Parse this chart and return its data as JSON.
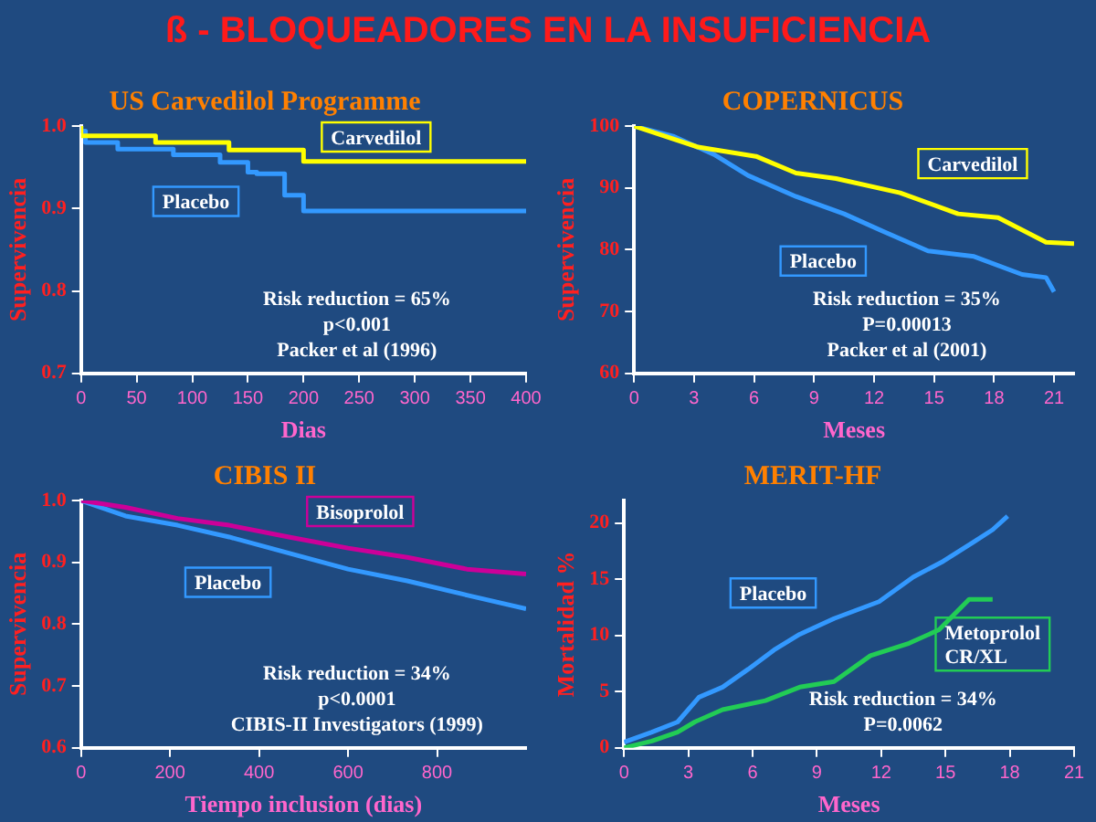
{
  "chart_data": [
    {
      "type": "other",
      "title": "ß - BLOQUEADORES EN LA INSUFICIENCIA"
    },
    {
      "type": "step",
      "title": "US Carvedilol Programme",
      "ylabel": "Supervivencia",
      "xlabel": "Dias",
      "xlim": [
        0,
        400
      ],
      "xticks": [
        0,
        50,
        100,
        150,
        200,
        250,
        300,
        350,
        400
      ],
      "ylim": [
        0.7,
        1.0
      ],
      "yticks": [
        0.7,
        0.8,
        0.9,
        {
          "value": 1.0,
          "label": "1.0"
        }
      ],
      "grid": false,
      "series": [
        {
          "name": "Carvedilol",
          "color": "#ffff00",
          "x": [
            0,
            67,
            133,
            200,
            217,
            400
          ],
          "values": [
            1.0,
            0.988,
            0.98,
            0.971,
            0.957,
            0.957
          ]
        },
        {
          "name": "Placebo",
          "color": "#3399ff",
          "x": [
            0,
            4,
            33,
            83,
            125,
            150,
            158,
            183,
            200,
            335,
            400
          ],
          "values": [
            1.0,
            0.994,
            0.98,
            0.972,
            0.965,
            0.956,
            0.944,
            0.942,
            0.916,
            0.897,
            0.897
          ]
        }
      ],
      "annotations": [
        "Risk reduction = 65%",
        "p<0.001",
        "Packer et al (1996)"
      ]
    },
    {
      "type": "line",
      "title": "COPERNICUS",
      "ylabel": "Supervivencia",
      "xlabel": "Meses",
      "xlim": [
        0,
        22
      ],
      "xticks": [
        0,
        3,
        6,
        9,
        12,
        15,
        18,
        21
      ],
      "ylim": [
        60,
        100
      ],
      "yticks": [
        60,
        70,
        80,
        90,
        100
      ],
      "grid": false,
      "series": [
        {
          "name": "Carvedilol",
          "color": "#ffff00",
          "x": [
            0,
            3.2,
            6.1,
            8.1,
            10.1,
            13.3,
            16.2,
            18.2,
            20.6,
            22
          ],
          "values": [
            100,
            96.6,
            95.1,
            92.4,
            91.5,
            89.2,
            85.8,
            85.2,
            81.2,
            81.0
          ]
        },
        {
          "name": "Placebo",
          "color": "#3399ff",
          "x": [
            0,
            2,
            4,
            5.7,
            8.1,
            10.5,
            12.5,
            14.7,
            17,
            19.4,
            20.6,
            21
          ],
          "values": [
            100,
            98.3,
            95.4,
            92.0,
            88.6,
            85.8,
            82.9,
            79.8,
            78.9,
            76.0,
            75.5,
            73.2
          ]
        }
      ],
      "annotations": [
        "Risk reduction = 35%",
        "P=0.00013",
        "Packer et al (2001)"
      ]
    },
    {
      "type": "line",
      "title": "CIBIS II",
      "ylabel": "Supervivencia",
      "xlabel": "Tiempo inclusion (dias)",
      "xlim": [
        0,
        1000
      ],
      "xticks": [
        0,
        200,
        400,
        600,
        800
      ],
      "ylim": [
        0.6,
        1.0
      ],
      "yticks": [
        0.6,
        0.7,
        0.8,
        0.9,
        {
          "value": 1.0,
          "label": "1.0"
        }
      ],
      "grid": false,
      "series": [
        {
          "name": "Bisoprolol",
          "color": "#cc0099",
          "x": [
            0,
            100,
            217,
            333,
            467,
            600,
            733,
            867,
            1000
          ],
          "values": [
            1.0,
            0.989,
            0.971,
            0.96,
            0.941,
            0.923,
            0.908,
            0.889,
            0.881
          ]
        },
        {
          "name": "Placebo",
          "color": "#3399ff",
          "x": [
            0,
            100,
            217,
            333,
            467,
            600,
            733,
            867,
            1000
          ],
          "values": [
            1.0,
            0.975,
            0.96,
            0.941,
            0.915,
            0.889,
            0.87,
            0.847,
            0.825
          ]
        }
      ],
      "annotations": [
        "Risk reduction = 34%",
        "p<0.0001",
        "CIBIS-II Investigators (1999)"
      ]
    },
    {
      "type": "line",
      "title": "MERIT-HF",
      "ylabel": "Mortalidad %",
      "xlabel": "Meses",
      "xlim": [
        0,
        21
      ],
      "xticks": [
        0,
        3,
        6,
        9,
        12,
        15,
        18,
        21
      ],
      "ylim": [
        0,
        22
      ],
      "yticks": [
        0,
        5,
        10,
        15,
        20
      ],
      "grid": false,
      "series": [
        {
          "name": "Placebo",
          "color": "#3399ff",
          "x": [
            0,
            1.3,
            2.5,
            3.5,
            4.6,
            5.8,
            7,
            8.2,
            9.8,
            11.9,
            13.5,
            14.9,
            16.3,
            17.2,
            17.9
          ],
          "values": [
            0.5,
            1.4,
            2.3,
            4.5,
            5.4,
            7.0,
            8.7,
            10.1,
            11.5,
            13.0,
            15.2,
            16.6,
            18.3,
            19.4,
            20.6
          ]
        },
        {
          "name": "Metoprolol CR/XL",
          "color": "#22cc55",
          "x": [
            0,
            1.3,
            2.5,
            3.3,
            4.6,
            6.6,
            8.2,
            9.8,
            11.5,
            13.3,
            14.7,
            16.1,
            17.2
          ],
          "values": [
            0,
            0.6,
            1.4,
            2.3,
            3.4,
            4.2,
            5.4,
            5.9,
            8.2,
            9.3,
            10.5,
            13.2,
            13.2
          ]
        }
      ],
      "annotations": [
        "Risk reduction = 34%",
        "P=0.0062"
      ]
    }
  ]
}
